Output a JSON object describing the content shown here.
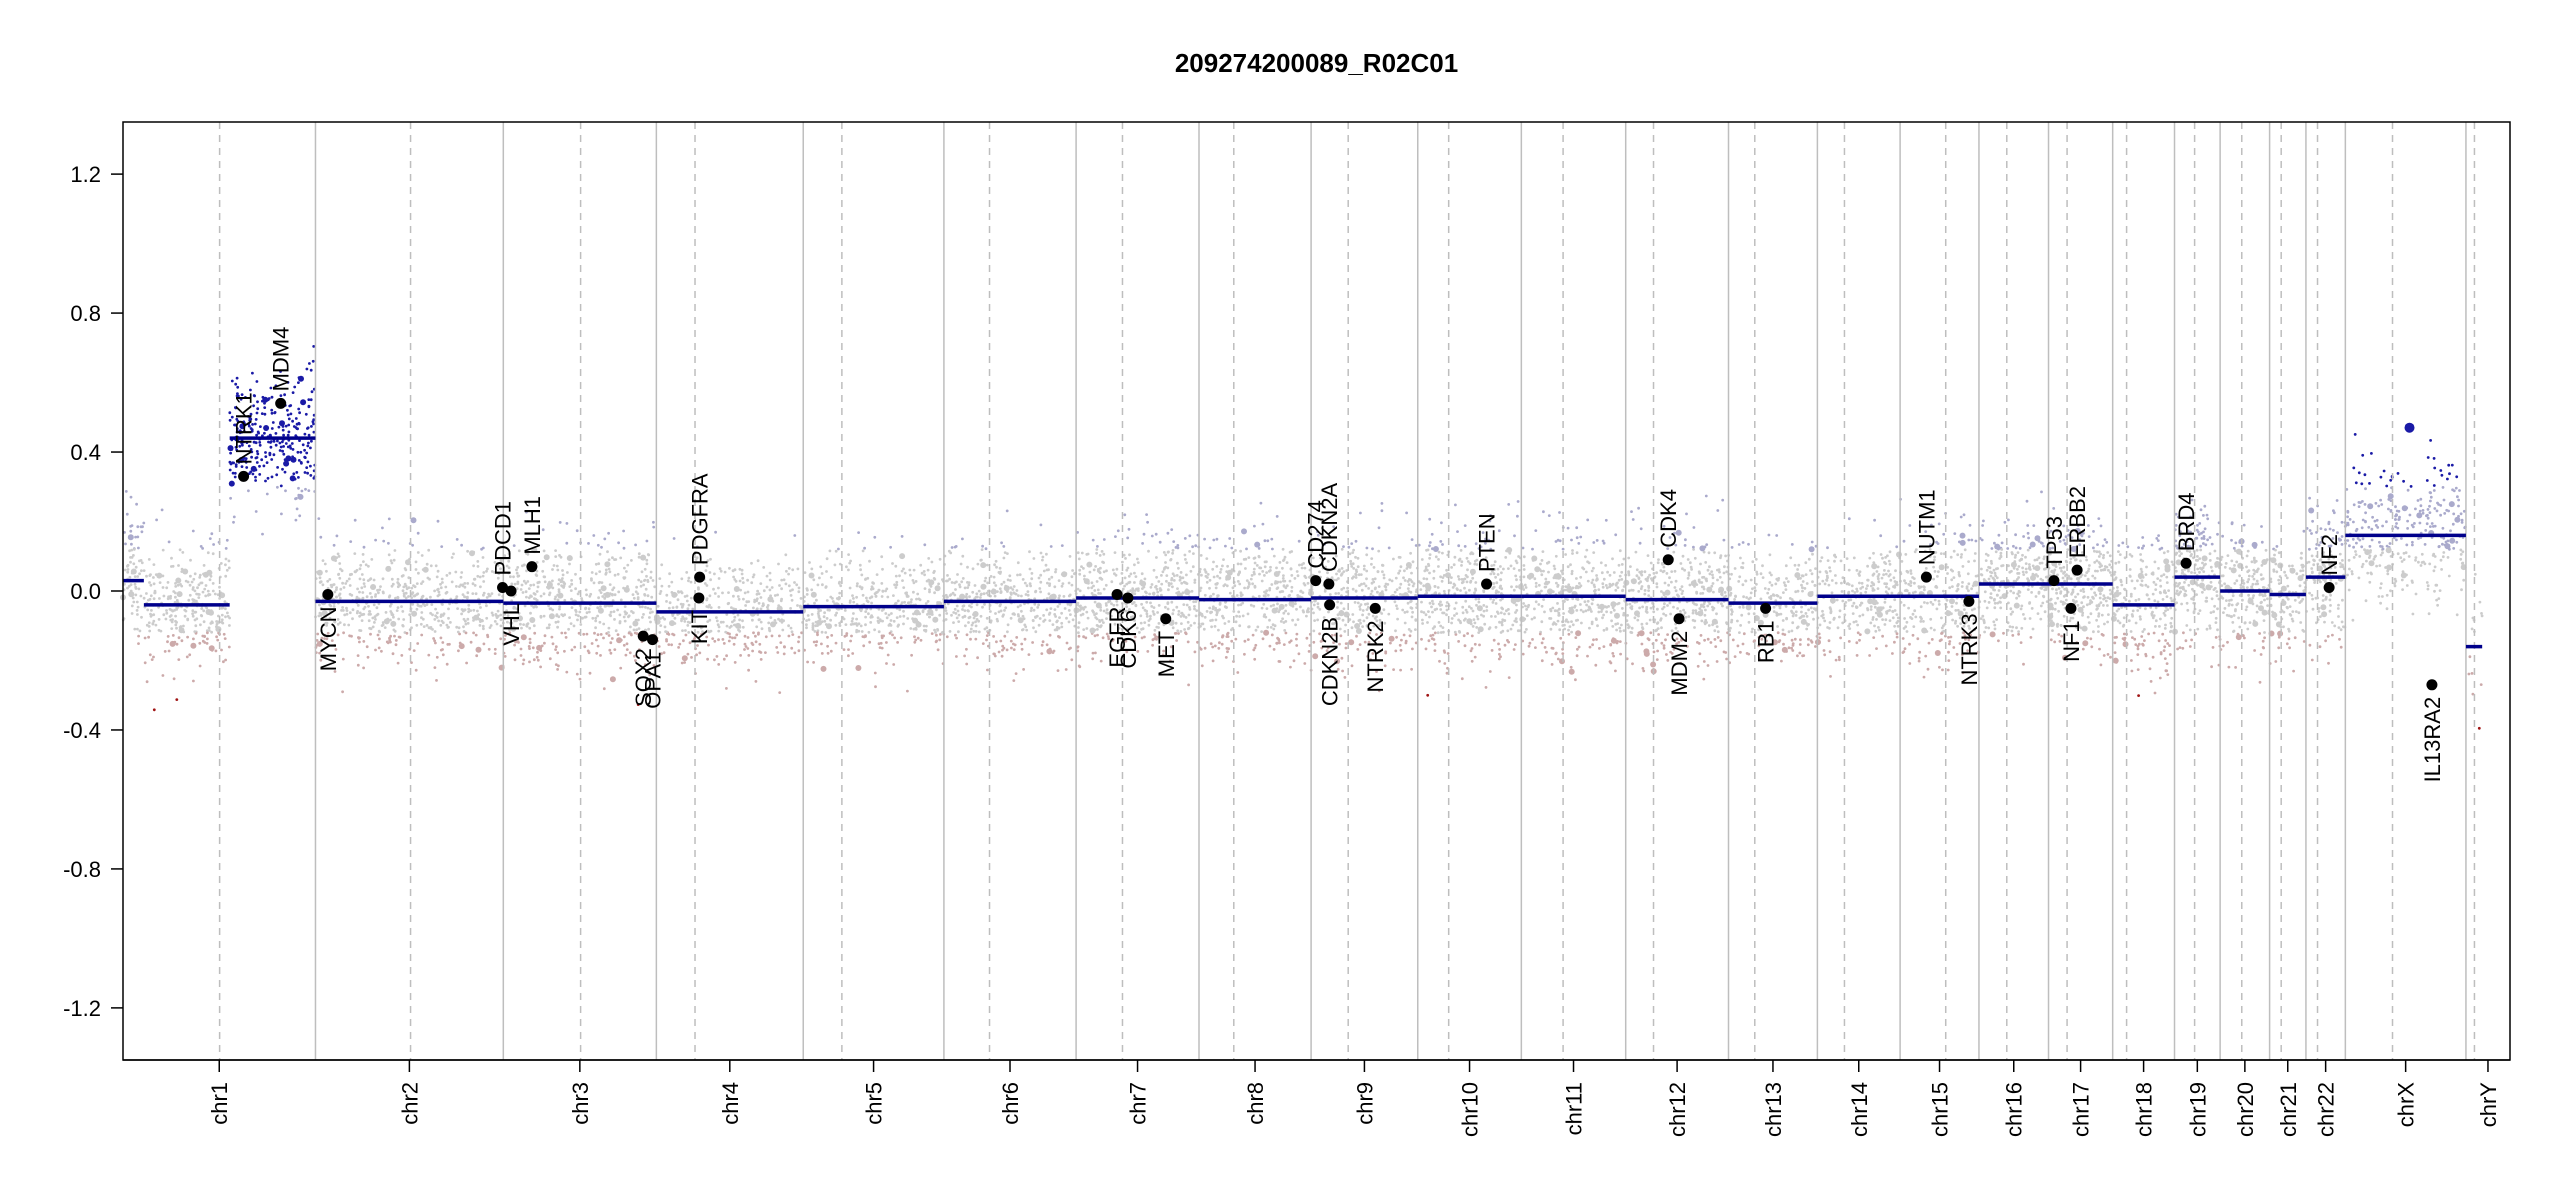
{
  "chart_data": {
    "type": "scatter",
    "title": "209274200089_R02C01",
    "xlabel": "",
    "ylabel": "",
    "ylim": [
      -1.35,
      1.35
    ],
    "yticks": [
      -1.2,
      -0.8,
      -0.4,
      0.0,
      0.4,
      0.8,
      1.2
    ],
    "ytick_labels": [
      "-1.2",
      "-0.8",
      "-0.4",
      "0.0",
      "0.4",
      "0.8",
      "1.2"
    ],
    "grid": false,
    "chromosomes": [
      {
        "name": "chr1",
        "start": 0,
        "end": 249
      },
      {
        "name": "chr2",
        "start": 249,
        "end": 492
      },
      {
        "name": "chr3",
        "start": 492,
        "end": 690
      },
      {
        "name": "chr4",
        "start": 690,
        "end": 880
      },
      {
        "name": "chr5",
        "start": 880,
        "end": 1062
      },
      {
        "name": "chr6",
        "start": 1062,
        "end": 1233
      },
      {
        "name": "chr7",
        "start": 1233,
        "end": 1392
      },
      {
        "name": "chr8",
        "start": 1392,
        "end": 1537
      },
      {
        "name": "chr9",
        "start": 1537,
        "end": 1675
      },
      {
        "name": "chr10",
        "start": 1675,
        "end": 1809
      },
      {
        "name": "chr11",
        "start": 1809,
        "end": 1944
      },
      {
        "name": "chr12",
        "start": 1944,
        "end": 2077
      },
      {
        "name": "chr13",
        "start": 2077,
        "end": 2192
      },
      {
        "name": "chr14",
        "start": 2192,
        "end": 2299
      },
      {
        "name": "chr15",
        "start": 2299,
        "end": 2401
      },
      {
        "name": "chr16",
        "start": 2401,
        "end": 2491
      },
      {
        "name": "chr17",
        "start": 2491,
        "end": 2574
      },
      {
        "name": "chr18",
        "start": 2574,
        "end": 2654
      },
      {
        "name": "chr19",
        "start": 2654,
        "end": 2713
      },
      {
        "name": "chr20",
        "start": 2713,
        "end": 2777
      },
      {
        "name": "chr21",
        "start": 2777,
        "end": 2824
      },
      {
        "name": "chr22",
        "start": 2824,
        "end": 2875
      },
      {
        "name": "chrX",
        "start": 2875,
        "end": 3031
      },
      {
        "name": "chrY",
        "start": 3031,
        "end": 3088
      }
    ],
    "centromeres": [
      125,
      372,
      592,
      740,
      930,
      1121,
      1293,
      1437,
      1585,
      1715,
      1863,
      1980,
      2111,
      2227,
      2358,
      2437,
      2515,
      2592,
      2680,
      2741,
      2792,
      2839,
      2936,
      3042
    ],
    "segments": [
      {
        "start": 0,
        "end": 27,
        "value": 0.03
      },
      {
        "start": 27,
        "end": 138,
        "value": -0.04
      },
      {
        "start": 138,
        "end": 249,
        "value": 0.44
      },
      {
        "start": 249,
        "end": 492,
        "value": -0.03
      },
      {
        "start": 492,
        "end": 690,
        "value": -0.035
      },
      {
        "start": 690,
        "end": 880,
        "value": -0.06
      },
      {
        "start": 880,
        "end": 1062,
        "value": -0.045
      },
      {
        "start": 1062,
        "end": 1233,
        "value": -0.03
      },
      {
        "start": 1233,
        "end": 1392,
        "value": -0.02
      },
      {
        "start": 1392,
        "end": 1537,
        "value": -0.025
      },
      {
        "start": 1537,
        "end": 1675,
        "value": -0.02
      },
      {
        "start": 1675,
        "end": 1809,
        "value": -0.015
      },
      {
        "start": 1809,
        "end": 1944,
        "value": -0.015
      },
      {
        "start": 1944,
        "end": 2077,
        "value": -0.025
      },
      {
        "start": 2077,
        "end": 2192,
        "value": -0.035
      },
      {
        "start": 2192,
        "end": 2299,
        "value": -0.015
      },
      {
        "start": 2299,
        "end": 2401,
        "value": -0.015
      },
      {
        "start": 2401,
        "end": 2574,
        "value": 0.02
      },
      {
        "start": 2574,
        "end": 2654,
        "value": -0.04
      },
      {
        "start": 2654,
        "end": 2713,
        "value": 0.04
      },
      {
        "start": 2713,
        "end": 2777,
        "value": 0.0
      },
      {
        "start": 2777,
        "end": 2824,
        "value": -0.01
      },
      {
        "start": 2824,
        "end": 2875,
        "value": 0.04
      },
      {
        "start": 2875,
        "end": 3031,
        "value": 0.16
      },
      {
        "start": 3031,
        "end": 3052,
        "value": -0.16
      }
    ],
    "genes": [
      {
        "name": "NTRK1",
        "pos": 156,
        "value": 0.33,
        "label_side": "above"
      },
      {
        "name": "MDM4",
        "pos": 204,
        "value": 0.54,
        "label_side": "above"
      },
      {
        "name": "MYCN",
        "pos": 265,
        "value": -0.01,
        "label_side": "below"
      },
      {
        "name": "VHL",
        "pos": 502,
        "value": 0.0,
        "label_side": "below"
      },
      {
        "name": "PDCD1",
        "pos": 491,
        "value": 0.01,
        "label_side": "above"
      },
      {
        "name": "MLH1",
        "pos": 529,
        "value": 0.07,
        "label_side": "above"
      },
      {
        "name": "SOX2",
        "pos": 673,
        "value": -0.13,
        "label_side": "below"
      },
      {
        "name": "OPA1",
        "pos": 685,
        "value": -0.14,
        "label_side": "below"
      },
      {
        "name": "KIT",
        "pos": 745,
        "value": -0.02,
        "label_side": "below"
      },
      {
        "name": "PDGFRA",
        "pos": 746,
        "value": 0.04,
        "label_side": "above"
      },
      {
        "name": "EGFR",
        "pos": 1286,
        "value": -0.01,
        "label_side": "below"
      },
      {
        "name": "CDK6",
        "pos": 1300,
        "value": -0.02,
        "label_side": "below"
      },
      {
        "name": "MET",
        "pos": 1349,
        "value": -0.08,
        "label_side": "below"
      },
      {
        "name": "CD274",
        "pos": 1543,
        "value": 0.03,
        "label_side": "above"
      },
      {
        "name": "CDKN2A",
        "pos": 1560,
        "value": 0.02,
        "label_side": "above"
      },
      {
        "name": "CDKN2B",
        "pos": 1561,
        "value": -0.04,
        "label_side": "below"
      },
      {
        "name": "NTRK2",
        "pos": 1620,
        "value": -0.05,
        "label_side": "below"
      },
      {
        "name": "PTEN",
        "pos": 1764,
        "value": 0.02,
        "label_side": "above"
      },
      {
        "name": "CDK4",
        "pos": 1999,
        "value": 0.09,
        "label_side": "above"
      },
      {
        "name": "MDM2",
        "pos": 2013,
        "value": -0.08,
        "label_side": "below"
      },
      {
        "name": "RB1",
        "pos": 2125,
        "value": -0.05,
        "label_side": "below"
      },
      {
        "name": "NUTM1",
        "pos": 2333,
        "value": 0.04,
        "label_side": "above"
      },
      {
        "name": "NTRK3",
        "pos": 2388,
        "value": -0.03,
        "label_side": "below"
      },
      {
        "name": "TP53",
        "pos": 2498,
        "value": 0.03,
        "label_side": "above"
      },
      {
        "name": "NF1",
        "pos": 2520,
        "value": -0.05,
        "label_side": "below"
      },
      {
        "name": "ERBB2",
        "pos": 2528,
        "value": 0.06,
        "label_side": "above"
      },
      {
        "name": "BRD4",
        "pos": 2669,
        "value": 0.08,
        "label_side": "above"
      },
      {
        "name": "NF2",
        "pos": 2854,
        "value": 0.01,
        "label_side": "above"
      },
      {
        "name": "IL13RA2",
        "pos": 2987,
        "value": -0.27,
        "label_side": "below"
      }
    ],
    "notable_bins": [
      {
        "pos": 2958,
        "value": 0.47
      }
    ],
    "noise": {
      "comment": "per-chromosome bin scatter: mean follows segment value, spread sd",
      "sd": [
        0.09,
        0.08,
        0.09,
        0.08,
        0.08,
        0.08,
        0.09,
        0.09,
        0.09,
        0.09,
        0.09,
        0.09,
        0.08,
        0.08,
        0.09,
        0.08,
        0.09,
        0.1,
        0.09,
        0.08,
        0.09,
        0.09,
        0.1,
        0.12
      ],
      "density": [
        700,
        600,
        520,
        400,
        420,
        420,
        450,
        400,
        360,
        380,
        380,
        380,
        260,
        260,
        260,
        260,
        300,
        220,
        220,
        180,
        110,
        140,
        330,
        40
      ]
    },
    "colors": {
      "segment": "#00008b",
      "gain_light": "#aaaacc",
      "gain_strong": "#1a1aa6",
      "loss_light": "#ccaaaa",
      "loss_strong": "#a01515",
      "neutral": "#cccccc",
      "boundary": "#bebebe",
      "centromere": "#bebebe",
      "axis": "#000000"
    }
  }
}
